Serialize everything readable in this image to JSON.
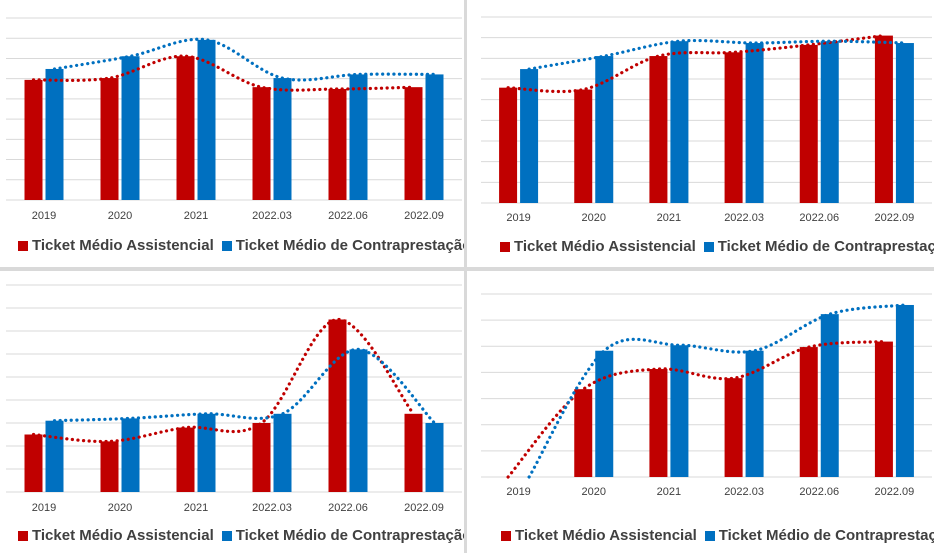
{
  "colors": {
    "assistencial": "#c00000",
    "contraprestacao": "#0070c0",
    "grid": "#d9d9d9"
  },
  "chart_data": [
    {
      "type": "bar",
      "categories": [
        "2019",
        "2020",
        "2021",
        "2022.03",
        "2022.06",
        "2022.09"
      ],
      "series": [
        {
          "name": "Ticket Médio Assistencial",
          "values": [
            66,
            67,
            79,
            62,
            61,
            62
          ]
        },
        {
          "name": "Ticket Médio de Contraprestação",
          "values": [
            72,
            79,
            88,
            67,
            69,
            69
          ]
        }
      ],
      "trendline": true,
      "ylim": [
        0,
        100
      ],
      "grid": true,
      "legend": "bottom"
    },
    {
      "type": "bar",
      "categories": [
        "2019",
        "2020",
        "2021",
        "2022.03",
        "2022.06",
        "2022.09"
      ],
      "series": [
        {
          "name": "Ticket Médio Assistencial",
          "values": [
            62,
            61,
            79,
            81,
            85,
            90
          ]
        },
        {
          "name": "Ticket Médio de Contraprestação",
          "values": [
            72,
            79,
            87,
            86,
            87,
            86
          ]
        }
      ],
      "trendline": true,
      "ylim": [
        0,
        100
      ],
      "grid": true,
      "legend": "bottom"
    },
    {
      "type": "bar",
      "categories": [
        "2019",
        "2020",
        "2021",
        "2022.03",
        "2022.06",
        "2022.09"
      ],
      "series": [
        {
          "name": "Ticket Médio Assistencial",
          "values": [
            45,
            42,
            48,
            50,
            95,
            54
          ]
        },
        {
          "name": "Ticket Médio de Contraprestação",
          "values": [
            51,
            52,
            54,
            54,
            82,
            50
          ]
        }
      ],
      "trendline": true,
      "ylim": [
        20,
        110
      ],
      "grid": true,
      "legend": "bottom"
    },
    {
      "type": "bar",
      "categories": [
        "2019",
        "2020",
        "2021",
        "2022.03",
        "2022.06",
        "2022.09"
      ],
      "series": [
        {
          "name": "Ticket Médio Assistencial",
          "values": [
            0,
            48,
            59,
            54,
            71,
            74
          ]
        },
        {
          "name": "Ticket Médio de Contraprestação",
          "values": [
            0,
            69,
            72,
            69,
            89,
            94
          ]
        }
      ],
      "trendline": true,
      "ylim": [
        0,
        100
      ],
      "grid": true,
      "legend": "bottom"
    }
  ],
  "legend_labels": {
    "assistencial": "Ticket Médio Assistencial",
    "contraprestacao": "Ticket Médio de Contraprestação"
  }
}
